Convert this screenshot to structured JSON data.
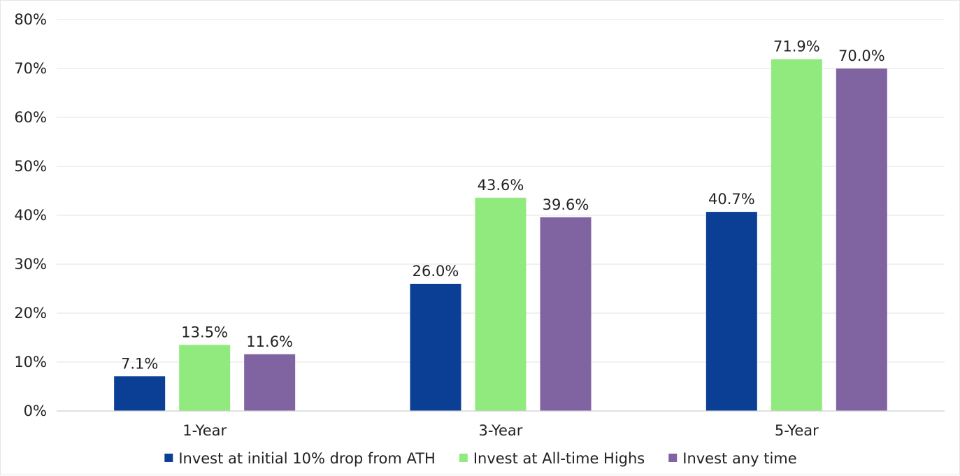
{
  "chart_data": {
    "type": "bar",
    "title": "",
    "xlabel": "",
    "ylabel": "",
    "categories": [
      "1-Year",
      "3-Year",
      "5-Year"
    ],
    "series": [
      {
        "name": "Invest at initial 10% drop from ATH",
        "color": "#0b3f96",
        "values": [
          7.1,
          26.0,
          40.7
        ],
        "labels": [
          "7.1%",
          "26.0%",
          "40.7%"
        ]
      },
      {
        "name": "Invest at All-time Highs",
        "color": "#90ea7d",
        "values": [
          13.5,
          43.6,
          71.9
        ],
        "labels": [
          "13.5%",
          "43.6%",
          "71.9%"
        ]
      },
      {
        "name": "Invest any time",
        "color": "#8064a2",
        "values": [
          11.6,
          39.6,
          70.0
        ],
        "labels": [
          "11.6%",
          "39.6%",
          "70.0%"
        ]
      }
    ],
    "ylim": [
      0,
      80
    ],
    "yticks": [
      0,
      10,
      20,
      30,
      40,
      50,
      60,
      70,
      80
    ],
    "ytick_labels": [
      "0%",
      "10%",
      "20%",
      "30%",
      "40%",
      "50%",
      "60%",
      "70%",
      "80%"
    ],
    "grid": true,
    "legend_position": "bottom"
  }
}
